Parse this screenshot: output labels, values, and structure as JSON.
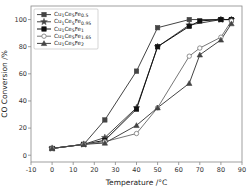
{
  "chart_data": {
    "type": "line",
    "title": "",
    "xlabel": "Temperature /°C",
    "ylabel": "CO Conversion /%",
    "xlim": [
      -10,
      90
    ],
    "ylim": [
      -5,
      110
    ],
    "xticks": [
      -10,
      0,
      10,
      20,
      30,
      40,
      50,
      60,
      70,
      80,
      90
    ],
    "yticks": [
      0,
      20,
      40,
      60,
      80,
      100
    ],
    "legend": "upper left",
    "grid": false,
    "series": [
      {
        "name": "Cu1Ce5Fe0.5",
        "color": "#444444",
        "marker": "square",
        "line_style": "solid",
        "x": [
          0,
          15,
          25,
          40,
          50,
          65,
          80,
          85
        ],
        "values": [
          5,
          8,
          26,
          62,
          94,
          100,
          100,
          100
        ]
      },
      {
        "name": "Cu1Ce5Fe0.95",
        "color": "#444444",
        "marker": "star",
        "line_style": "solid",
        "x": [
          0,
          15,
          25,
          40,
          50,
          65,
          80,
          85
        ],
        "values": [
          5,
          8,
          13,
          35,
          80,
          96,
          100,
          100
        ]
      },
      {
        "name": "Cu1Ce5Fe1",
        "color": "#111111",
        "marker": "square",
        "line_style": "solid",
        "x": [
          0,
          15,
          25,
          40,
          50,
          65,
          70,
          80,
          85
        ],
        "values": [
          5,
          8,
          11,
          34,
          80,
          95,
          99,
          100,
          100
        ]
      },
      {
        "name": "Cu1Ce5Fe1.65",
        "color": "#777777",
        "marker": "open-circle",
        "line_style": "solid",
        "x": [
          0,
          15,
          25,
          40,
          50,
          65,
          70,
          80,
          85
        ],
        "values": [
          5,
          8,
          10,
          16,
          35,
          73,
          79,
          87,
          99
        ]
      },
      {
        "name": "Cu1Ce5Fe2",
        "color": "#444444",
        "marker": "triangle",
        "line_style": "solid",
        "x": [
          0,
          15,
          25,
          40,
          50,
          65,
          70,
          80,
          85
        ],
        "values": [
          5,
          8,
          9,
          22,
          35,
          53,
          74,
          85,
          97
        ]
      }
    ]
  }
}
